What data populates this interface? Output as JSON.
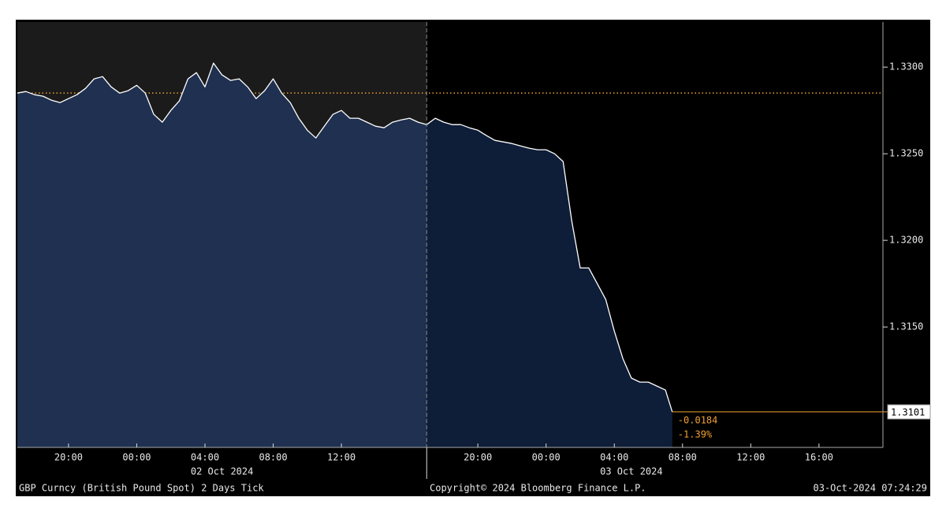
{
  "chart_data": {
    "type": "area",
    "color": "#ffffff",
    "x": [
      "2024-10-01 17:00",
      "2024-10-01 17:30",
      "2024-10-01 18:00",
      "2024-10-01 18:30",
      "2024-10-01 19:00",
      "2024-10-01 19:30",
      "2024-10-01 20:00",
      "2024-10-01 20:30",
      "2024-10-01 21:00",
      "2024-10-01 21:30",
      "2024-10-01 22:00",
      "2024-10-01 22:30",
      "2024-10-01 23:00",
      "2024-10-01 23:30",
      "2024-10-02 00:00",
      "2024-10-02 00:30",
      "2024-10-02 01:00",
      "2024-10-02 01:30",
      "2024-10-02 02:00",
      "2024-10-02 02:30",
      "2024-10-02 03:00",
      "2024-10-02 03:30",
      "2024-10-02 04:00",
      "2024-10-02 04:30",
      "2024-10-02 05:00",
      "2024-10-02 05:30",
      "2024-10-02 06:00",
      "2024-10-02 06:30",
      "2024-10-02 07:00",
      "2024-10-02 07:30",
      "2024-10-02 08:00",
      "2024-10-02 08:30",
      "2024-10-02 09:00",
      "2024-10-02 09:30",
      "2024-10-02 10:00",
      "2024-10-02 10:30",
      "2024-10-02 11:00",
      "2024-10-02 11:30",
      "2024-10-02 12:00",
      "2024-10-02 12:30",
      "2024-10-02 13:00",
      "2024-10-02 13:30",
      "2024-10-02 14:00",
      "2024-10-02 14:30",
      "2024-10-02 15:00",
      "2024-10-02 15:30",
      "2024-10-02 16:00",
      "2024-10-02 16:30",
      "2024-10-02 17:00",
      "2024-10-02 17:30",
      "2024-10-02 18:00",
      "2024-10-02 18:30",
      "2024-10-02 19:00",
      "2024-10-02 19:30",
      "2024-10-02 20:00",
      "2024-10-02 20:30",
      "2024-10-02 21:00",
      "2024-10-02 21:30",
      "2024-10-02 22:00",
      "2024-10-02 22:30",
      "2024-10-02 23:00",
      "2024-10-02 23:30",
      "2024-10-03 00:00",
      "2024-10-03 00:30",
      "2024-10-03 01:00",
      "2024-10-03 01:30",
      "2024-10-03 02:00",
      "2024-10-03 02:30",
      "2024-10-03 03:00",
      "2024-10-03 03:30",
      "2024-10-03 04:00",
      "2024-10-03 04:30",
      "2024-10-03 05:00",
      "2024-10-03 05:30",
      "2024-10-03 06:00",
      "2024-10-03 06:30",
      "2024-10-03 07:00",
      "2024-10-03 07:24"
    ],
    "values": [
      1.3285,
      1.32859,
      1.32841,
      1.32832,
      1.32809,
      1.32795,
      1.32818,
      1.32841,
      1.32877,
      1.32932,
      1.32945,
      1.32886,
      1.3285,
      1.32864,
      1.32895,
      1.3285,
      1.32727,
      1.32682,
      1.3275,
      1.32805,
      1.32932,
      1.32968,
      1.32886,
      1.33023,
      1.32955,
      1.32923,
      1.32932,
      1.32886,
      1.32818,
      1.32864,
      1.32932,
      1.3285,
      1.32795,
      1.32705,
      1.32636,
      1.32591,
      1.32659,
      1.32727,
      1.3275,
      1.32705,
      1.32705,
      1.32682,
      1.32659,
      1.3265,
      1.32682,
      1.32695,
      1.32705,
      1.32682,
      1.32668,
      1.32705,
      1.32682,
      1.32668,
      1.32668,
      1.3265,
      1.32636,
      1.32605,
      1.32577,
      1.32568,
      1.32559,
      1.32545,
      1.32532,
      1.32523,
      1.32523,
      1.325,
      1.32455,
      1.32114,
      1.31841,
      1.31841,
      1.3175,
      1.31659,
      1.31477,
      1.31318,
      1.31205,
      1.31182,
      1.31182,
      1.31159,
      1.31136,
      1.3101
    ],
    "xlim": [
      "2024-10-01 17:00",
      "2024-10-03 19:45"
    ],
    "xticks": [
      {
        "value": "2024-10-01 20:00",
        "label": "20:00"
      },
      {
        "value": "2024-10-02 00:00",
        "label": "00:00"
      },
      {
        "value": "2024-10-02 04:00",
        "label": "04:00"
      },
      {
        "value": "2024-10-02 08:00",
        "label": "08:00"
      },
      {
        "value": "2024-10-02 12:00",
        "label": "12:00"
      },
      {
        "value": "2024-10-02 20:00",
        "label": "20:00"
      },
      {
        "value": "2024-10-03 00:00",
        "label": "00:00"
      },
      {
        "value": "2024-10-03 04:00",
        "label": "04:00"
      },
      {
        "value": "2024-10-03 08:00",
        "label": "08:00"
      },
      {
        "value": "2024-10-03 12:00",
        "label": "12:00"
      },
      {
        "value": "2024-10-03 16:00",
        "label": "16:00"
      }
    ],
    "date_labels": [
      {
        "value": "2024-10-02 05:00",
        "label": "02 Oct 2024"
      },
      {
        "value": "2024-10-03 05:00",
        "label": "03 Oct 2024"
      }
    ],
    "session_break": "2024-10-02 17:00",
    "ylim": [
      1.30805,
      1.3326
    ],
    "yticks": [
      {
        "value": 1.33,
        "label": "1.3300"
      },
      {
        "value": 1.325,
        "label": "1.3250"
      },
      {
        "value": 1.32,
        "label": "1.3200"
      },
      {
        "value": 1.315,
        "label": "1.3150"
      }
    ],
    "reference_line": 1.3285,
    "reference_color": "#f0a030",
    "last_value": 1.3101,
    "change": -0.0184,
    "change_pct": {
      "value": -1.39,
      "label": "-1.39%"
    },
    "footer": {
      "security": "GBP Curncy (British Pound Spot) 2 Days  Tick",
      "copyright": "Copyright© 2024 Bloomberg Finance L.P.",
      "timestamp": "03-Oct-2024 07:24:29"
    }
  }
}
